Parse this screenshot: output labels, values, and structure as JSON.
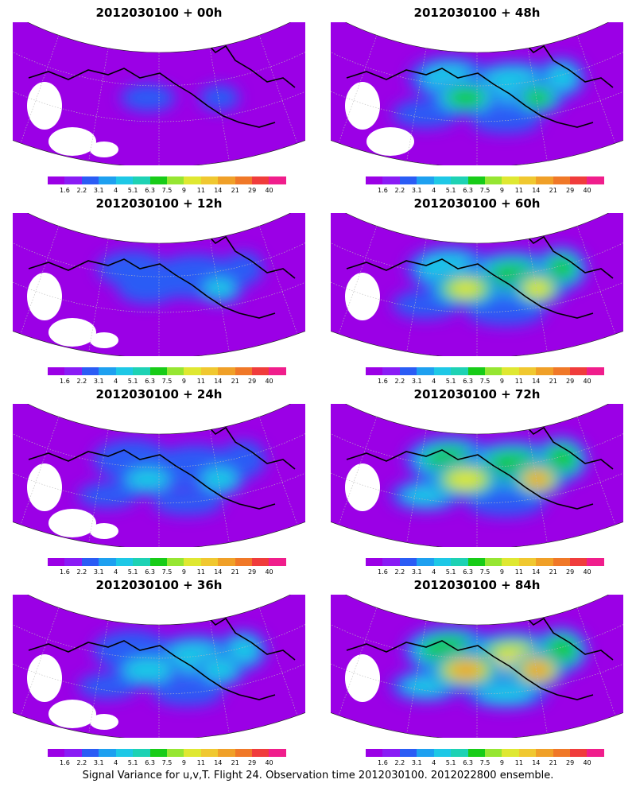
{
  "panels": [
    {
      "title": "2012030100 + 00h",
      "intensity": 0.15
    },
    {
      "title": "2012030100 + 48h",
      "intensity": 0.55
    },
    {
      "title": "2012030100 + 12h",
      "intensity": 0.3
    },
    {
      "title": "2012030100 + 60h",
      "intensity": 0.75
    },
    {
      "title": "2012030100 + 24h",
      "intensity": 0.4
    },
    {
      "title": "2012030100 + 72h",
      "intensity": 0.85
    },
    {
      "title": "2012030100 + 36h",
      "intensity": 0.45
    },
    {
      "title": "2012030100 + 84h",
      "intensity": 0.92
    }
  ],
  "colorbar": {
    "colors": [
      "#9b00e6",
      "#8a1cf5",
      "#2b5cf5",
      "#1ea0f0",
      "#1ec8e6",
      "#1ed2b4",
      "#18cc18",
      "#96e632",
      "#dfe832",
      "#f0c830",
      "#f0a028",
      "#f07828",
      "#f03c3c",
      "#f01e8c"
    ],
    "labels": [
      "1.6",
      "2.2",
      "3.1",
      "4",
      "5.1",
      "6.3",
      "7.5",
      "9",
      "11",
      "14",
      "21",
      "29",
      "40"
    ]
  },
  "caption": "Signal Variance for u,v,T. Flight 24. Observation time 2012030100. 2012022800 ensemble."
}
